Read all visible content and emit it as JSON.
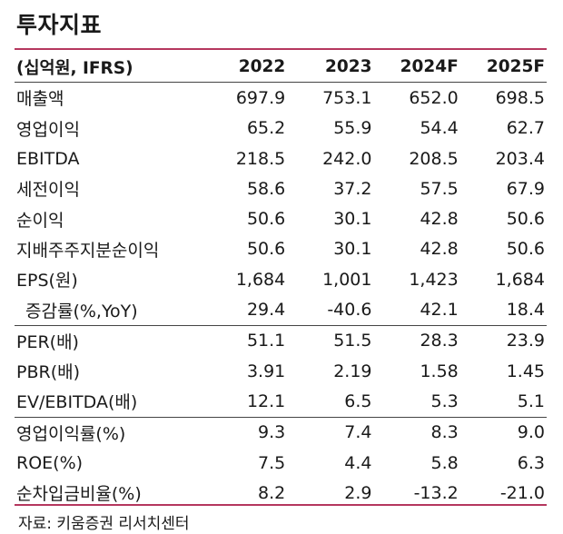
{
  "title": "투자지표",
  "header": {
    "unit": "(십억원, IFRS)",
    "years": [
      "2022",
      "2023",
      "2024F",
      "2025F"
    ]
  },
  "rows": [
    {
      "label": "매출액",
      "values": [
        "697.9",
        "753.1",
        "652.0",
        "698.5"
      ]
    },
    {
      "label": "영업이익",
      "values": [
        "65.2",
        "55.9",
        "54.4",
        "62.7"
      ]
    },
    {
      "label": "EBITDA",
      "values": [
        "218.5",
        "242.0",
        "208.5",
        "203.4"
      ]
    },
    {
      "label": "세전이익",
      "values": [
        "58.6",
        "37.2",
        "57.5",
        "67.9"
      ]
    },
    {
      "label": "순이익",
      "values": [
        "50.6",
        "30.1",
        "42.8",
        "50.6"
      ]
    },
    {
      "label": "지배주주지분순이익",
      "values": [
        "50.6",
        "30.1",
        "42.8",
        "50.6"
      ]
    },
    {
      "label": "EPS(원)",
      "values": [
        "1,684",
        "1,001",
        "1,423",
        "1,684"
      ]
    },
    {
      "label": "증감률(%,YoY)",
      "values": [
        "29.4",
        "-40.6",
        "42.1",
        "18.4"
      ]
    },
    {
      "label": "PER(배)",
      "values": [
        "51.1",
        "51.5",
        "28.3",
        "23.9"
      ]
    },
    {
      "label": "PBR(배)",
      "values": [
        "3.91",
        "2.19",
        "1.58",
        "1.45"
      ]
    },
    {
      "label": "EV/EBITDA(배)",
      "values": [
        "12.1",
        "6.5",
        "5.3",
        "5.1"
      ]
    },
    {
      "label": "영업이익률(%)",
      "values": [
        "9.3",
        "7.4",
        "8.3",
        "9.0"
      ]
    },
    {
      "label": "ROE(%)",
      "values": [
        "7.5",
        "4.4",
        "5.8",
        "6.3"
      ]
    },
    {
      "label": "순차입금비율(%)",
      "values": [
        "8.2",
        "2.9",
        "-13.2",
        "-21.0"
      ]
    }
  ],
  "source": "자료: 키움증권 리서치센터",
  "colors": {
    "accent_rule": "#b5375e"
  }
}
